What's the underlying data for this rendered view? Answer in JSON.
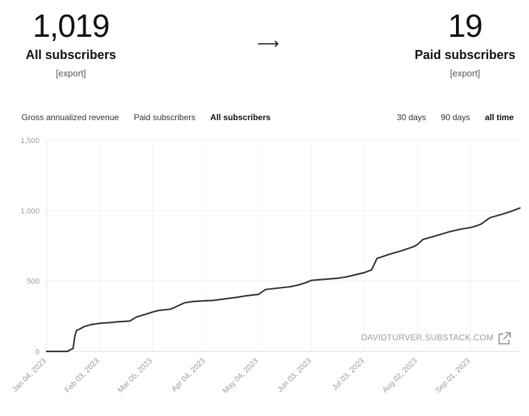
{
  "stats": {
    "all": {
      "value": "1,019",
      "label": "All subscribers",
      "export": "[export]"
    },
    "paid": {
      "value": "19",
      "label": "Paid subscribers",
      "export": "[export]"
    },
    "arrow": "⟶"
  },
  "tabs": {
    "metrics": [
      {
        "label": "Gross annualized revenue",
        "active": false
      },
      {
        "label": "Paid subscribers",
        "active": false
      },
      {
        "label": "All subscribers",
        "active": true
      }
    ],
    "ranges": [
      {
        "label": "30 days",
        "active": false
      },
      {
        "label": "90 days",
        "active": false
      },
      {
        "label": "all time",
        "active": true
      }
    ]
  },
  "chart_data": {
    "type": "line",
    "ylim": [
      0,
      1500
    ],
    "yticks": [
      0,
      500,
      1000,
      1500
    ],
    "ytick_labels": [
      "0",
      "500",
      "1,000",
      "1,500"
    ],
    "xlim": [
      "2023-01-04",
      "2023-09-29"
    ],
    "xticks": [
      "2023-01-04",
      "2023-02-03",
      "2023-03-05",
      "2023-04-04",
      "2023-05-04",
      "2023-06-03",
      "2023-07-03",
      "2023-08-02",
      "2023-09-01"
    ],
    "xtick_labels": [
      "Jan 04, 2023",
      "Feb 03, 2023",
      "Mar 05, 2023",
      "Apr 04, 2023",
      "May 04, 2023",
      "Jun 03, 2023",
      "Jul 03, 2023",
      "Aug 02, 2023",
      "Sep 01, 2023"
    ],
    "grid": true,
    "line_color": "#333333",
    "watermark": "DAVIDTURVER.SUBSTACK.COM",
    "series": [
      {
        "x": [
          "2023-01-04",
          "2023-01-10",
          "2023-01-16",
          "2023-01-17",
          "2023-01-19",
          "2023-01-20",
          "2023-01-21",
          "2023-01-23",
          "2023-01-25",
          "2023-01-29",
          "2023-02-03",
          "2023-02-09",
          "2023-02-13",
          "2023-02-20",
          "2023-02-24",
          "2023-02-28",
          "2023-03-05",
          "2023-03-08",
          "2023-03-15",
          "2023-03-17",
          "2023-03-23",
          "2023-03-28",
          "2023-04-04",
          "2023-04-08",
          "2023-04-12",
          "2023-04-16",
          "2023-04-22",
          "2023-04-27",
          "2023-05-04",
          "2023-05-08",
          "2023-05-15",
          "2023-05-22",
          "2023-05-26",
          "2023-05-30",
          "2023-06-03",
          "2023-06-08",
          "2023-06-13",
          "2023-06-18",
          "2023-06-23",
          "2023-06-28",
          "2023-07-03",
          "2023-07-06",
          "2023-07-07",
          "2023-07-10",
          "2023-07-17",
          "2023-07-24",
          "2023-07-31",
          "2023-08-02",
          "2023-08-05",
          "2023-08-12",
          "2023-08-20",
          "2023-08-27",
          "2023-09-01",
          "2023-09-04",
          "2023-09-07",
          "2023-09-12",
          "2023-09-19",
          "2023-09-24",
          "2023-09-29"
        ],
        "y": [
          0,
          0,
          0,
          10,
          20,
          110,
          150,
          160,
          175,
          190,
          200,
          205,
          210,
          215,
          245,
          260,
          280,
          290,
          300,
          310,
          345,
          355,
          360,
          362,
          368,
          375,
          385,
          395,
          405,
          440,
          450,
          460,
          470,
          485,
          505,
          510,
          515,
          520,
          530,
          545,
          560,
          575,
          580,
          660,
          690,
          715,
          745,
          760,
          795,
          820,
          850,
          870,
          880,
          890,
          905,
          950,
          975,
          995,
          1019
        ]
      }
    ]
  }
}
